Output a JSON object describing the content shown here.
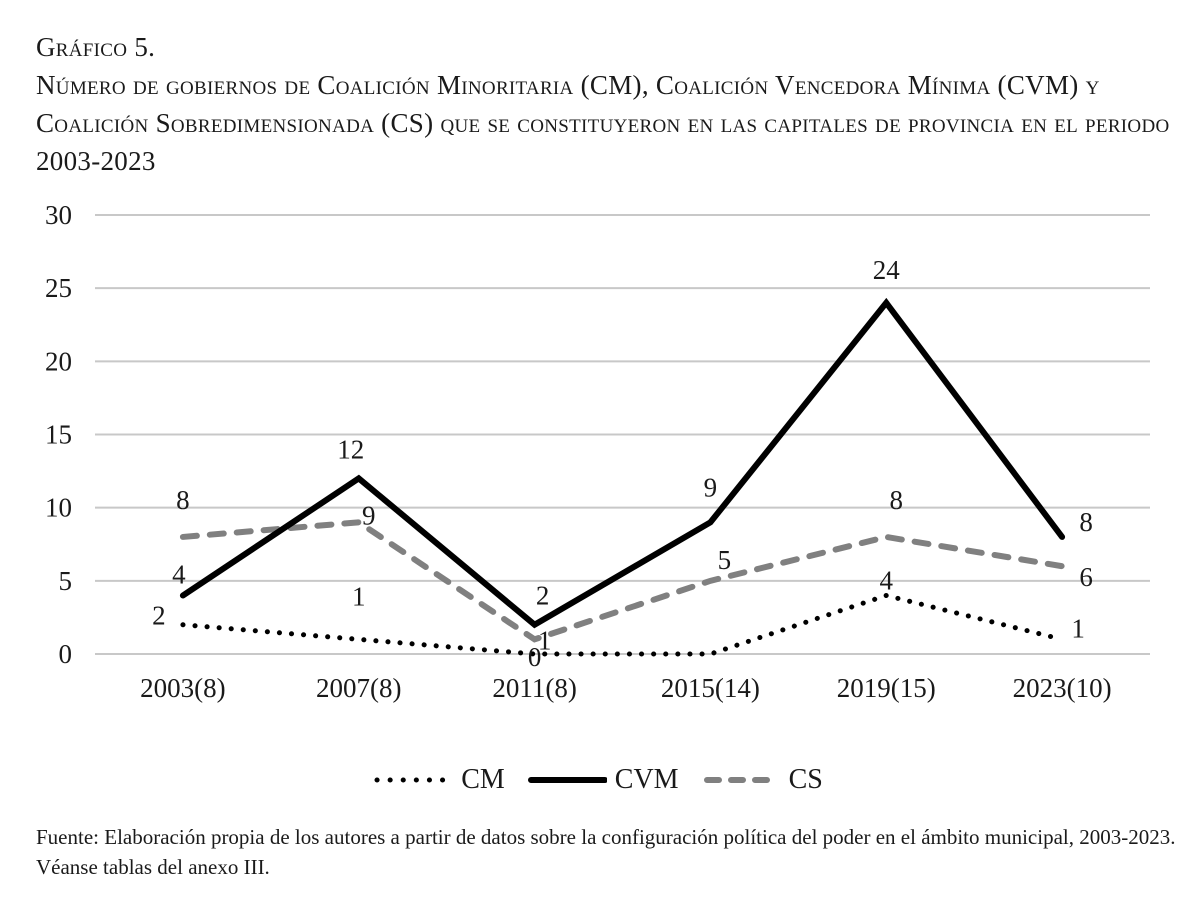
{
  "figure": {
    "label": "Gráfico 5.",
    "title": "Número de gobiernos de Coalición Minoritaria (CM), Coalición Vencedora Mínima (CVM) y Coalición Sobredimensionada (CS) que se constituyeron en las capitales de provincia en el periodo 2003-2023",
    "source": "Fuente: Elaboración propia de los autores a partir de datos sobre la configuración política del poder en el ámbito municipal, 2003-2023. Véanse tablas del anexo III."
  },
  "chart_data": {
    "type": "line",
    "title": "Número de gobiernos de Coalición Minoritaria (CM), Coalición Vencedora Mínima (CVM) y Coalición Sobredimensionada (CS) que se constituyeron en las capitales de provincia en el periodo 2003-2023",
    "xlabel": "",
    "ylabel": "",
    "categories": [
      "2003(8)",
      "2007(8)",
      "2011(8)",
      "2015(14)",
      "2019(15)",
      "2023(10)"
    ],
    "ylim": [
      0,
      30
    ],
    "yticks": [
      0,
      5,
      10,
      15,
      20,
      25,
      30
    ],
    "grid": "horizontal",
    "legend_position": "bottom",
    "series": [
      {
        "name": "CM",
        "style": "dotted",
        "color": "#000000",
        "values": [
          2,
          1,
          0,
          0,
          4,
          1
        ]
      },
      {
        "name": "CVM",
        "style": "solid",
        "color": "#000000",
        "values": [
          4,
          12,
          2,
          9,
          24,
          8
        ]
      },
      {
        "name": "CS",
        "style": "dashed",
        "color": "#808080",
        "values": [
          8,
          9,
          1,
          5,
          8,
          6
        ]
      }
    ],
    "gridline_color": "#c8c8c8"
  }
}
